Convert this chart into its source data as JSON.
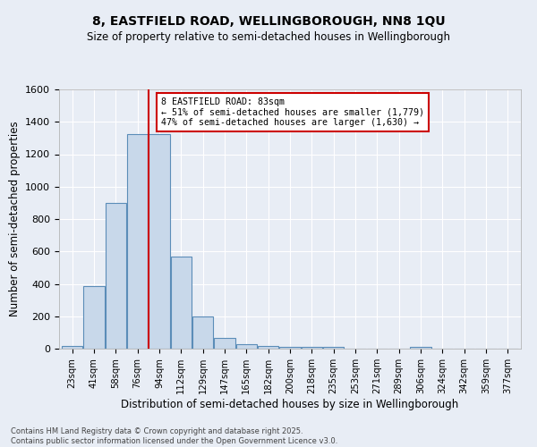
{
  "title_line1": "8, EASTFIELD ROAD, WELLINGBOROUGH, NN8 1QU",
  "title_line2": "Size of property relative to semi-detached houses in Wellingborough",
  "xlabel": "Distribution of semi-detached houses by size in Wellingborough",
  "ylabel": "Number of semi-detached properties",
  "categories": [
    "23sqm",
    "41sqm",
    "58sqm",
    "76sqm",
    "94sqm",
    "112sqm",
    "129sqm",
    "147sqm",
    "165sqm",
    "182sqm",
    "200sqm",
    "218sqm",
    "235sqm",
    "253sqm",
    "271sqm",
    "289sqm",
    "306sqm",
    "324sqm",
    "342sqm",
    "359sqm",
    "377sqm"
  ],
  "values": [
    18,
    385,
    900,
    1325,
    1325,
    570,
    200,
    65,
    30,
    18,
    10,
    10,
    10,
    0,
    0,
    0,
    12,
    0,
    0,
    0,
    0
  ],
  "bar_color": "#c8d8ea",
  "bar_edge_color": "#5b8db8",
  "red_line_x": 3.5,
  "annotation_title": "8 EASTFIELD ROAD: 83sqm",
  "annotation_line2": "← 51% of semi-detached houses are smaller (1,779)",
  "annotation_line3": "47% of semi-detached houses are larger (1,630) →",
  "annotation_box_color": "#ffffff",
  "annotation_box_edge": "#cc0000",
  "ylim": [
    0,
    1600
  ],
  "yticks": [
    0,
    200,
    400,
    600,
    800,
    1000,
    1200,
    1400,
    1600
  ],
  "background_color": "#e8edf5",
  "grid_color": "#ffffff",
  "footer_line1": "Contains HM Land Registry data © Crown copyright and database right 2025.",
  "footer_line2": "Contains public sector information licensed under the Open Government Licence v3.0."
}
